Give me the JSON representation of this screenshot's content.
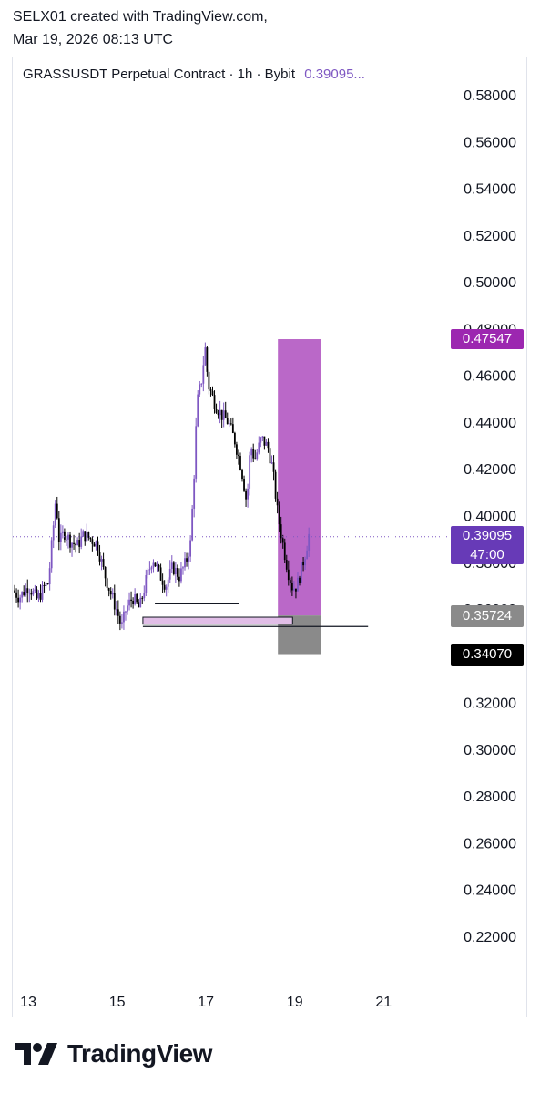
{
  "header": {
    "line1": "SELX01 created with TradingView.com,",
    "line2": "Mar 19, 2026 08:13 UTC"
  },
  "symbol": {
    "title": "GRASSUSDT Perpetual Contract · 1h · Bybit",
    "last": "0.39095..."
  },
  "tags": {
    "stop": "0.47547",
    "last_price": "0.39095",
    "countdown": "47:00",
    "entry": "0.35724",
    "target": "0.34070"
  },
  "colors": {
    "bull_candle": "#7e57c2",
    "bear_candle": "#000000",
    "stop_zone": "#ba68c8",
    "stop_tag": "#9c27b0",
    "last_tag": "#673ab7",
    "target_zone": "#8a8a8a",
    "order_block": "#e1bee7"
  },
  "logo": {
    "text": "TradingView",
    "icon": "tradingview-logo-icon"
  },
  "chart_data": {
    "type": "candlestick",
    "interval": "1h",
    "title": "GRASSUSDT Perpetual Contract · 1h · Bybit",
    "ylim": [
      0.2,
      0.59
    ],
    "y_ticks": [
      "0.58000",
      "0.56000",
      "0.54000",
      "0.52000",
      "0.50000",
      "0.48000",
      "0.46000",
      "0.44000",
      "0.42000",
      "0.40000",
      "0.38000",
      "0.36000",
      "0.34000",
      "0.32000",
      "0.30000",
      "0.28000",
      "0.26000",
      "0.24000",
      "0.22000"
    ],
    "x_ticks": [
      {
        "day": 13,
        "label": "13"
      },
      {
        "day": 15,
        "label": "15"
      },
      {
        "day": 17,
        "label": "17"
      },
      {
        "day": 19,
        "label": "19"
      },
      {
        "day": 21,
        "label": "21"
      }
    ],
    "xlim_days": [
      12.65,
      22.45
    ],
    "close_path": [
      [
        12.65,
        0.368
      ],
      [
        12.8,
        0.365
      ],
      [
        13.0,
        0.37
      ],
      [
        13.2,
        0.364
      ],
      [
        13.35,
        0.369
      ],
      [
        13.45,
        0.371
      ],
      [
        13.55,
        0.392
      ],
      [
        13.62,
        0.408
      ],
      [
        13.7,
        0.388
      ],
      [
        13.8,
        0.393
      ],
      [
        13.95,
        0.389
      ],
      [
        14.1,
        0.387
      ],
      [
        14.25,
        0.392
      ],
      [
        14.4,
        0.39
      ],
      [
        14.55,
        0.388
      ],
      [
        14.7,
        0.376
      ],
      [
        14.85,
        0.367
      ],
      [
        15.0,
        0.359
      ],
      [
        15.1,
        0.352
      ],
      [
        15.2,
        0.36
      ],
      [
        15.35,
        0.365
      ],
      [
        15.5,
        0.36
      ],
      [
        15.65,
        0.372
      ],
      [
        15.8,
        0.382
      ],
      [
        15.95,
        0.375
      ],
      [
        16.1,
        0.37
      ],
      [
        16.25,
        0.378
      ],
      [
        16.4,
        0.374
      ],
      [
        16.55,
        0.38
      ],
      [
        16.65,
        0.388
      ],
      [
        16.72,
        0.412
      ],
      [
        16.8,
        0.448
      ],
      [
        16.9,
        0.458
      ],
      [
        16.98,
        0.472
      ],
      [
        17.05,
        0.456
      ],
      [
        17.2,
        0.448
      ],
      [
        17.35,
        0.443
      ],
      [
        17.5,
        0.44
      ],
      [
        17.65,
        0.432
      ],
      [
        17.8,
        0.42
      ],
      [
        17.92,
        0.405
      ],
      [
        18.0,
        0.43
      ],
      [
        18.1,
        0.424
      ],
      [
        18.25,
        0.433
      ],
      [
        18.4,
        0.429
      ],
      [
        18.5,
        0.42
      ],
      [
        18.62,
        0.4
      ],
      [
        18.75,
        0.386
      ],
      [
        18.85,
        0.376
      ],
      [
        18.95,
        0.369
      ],
      [
        19.05,
        0.37
      ],
      [
        19.15,
        0.377
      ],
      [
        19.25,
        0.385
      ],
      [
        19.32,
        0.392
      ]
    ],
    "annotations": [
      {
        "type": "long_position",
        "entry": 0.35724,
        "stop": 0.47547,
        "target": 0.3407,
        "x_range_days": [
          18.62,
          19.6
        ]
      },
      {
        "type": "order_block",
        "low": 0.3535,
        "high": 0.3565,
        "x_range_days": [
          15.58,
          18.95
        ]
      },
      {
        "type": "hline",
        "price": 0.3625,
        "x_range_days": [
          15.85,
          17.75
        ]
      },
      {
        "type": "hline",
        "price": 0.3525,
        "x_range_days": [
          15.58,
          20.65
        ]
      },
      {
        "type": "current_price_line",
        "price": 0.39095
      }
    ]
  }
}
